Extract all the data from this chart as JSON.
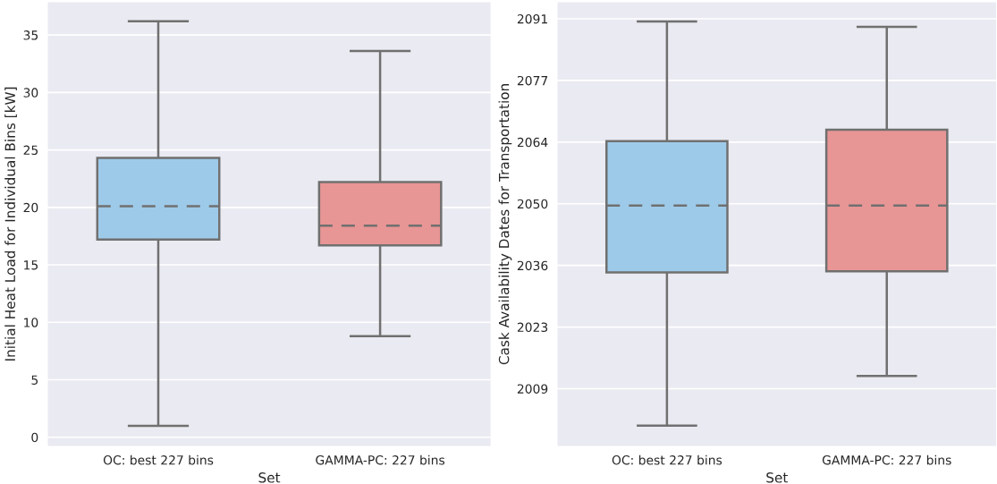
{
  "chart_data": [
    {
      "type": "box",
      "xlabel": "Set",
      "ylabel": "Initial Heat Load for Individual Bins [kW]",
      "categories": [
        "OC: best 227 bins",
        "GAMMA-PC: 227 bins"
      ],
      "colors": [
        "#9ecae9",
        "#e89595"
      ],
      "boxes": [
        {
          "low": 1.0,
          "q1": 17.2,
          "median": 20.1,
          "q3": 24.3,
          "high": 36.2
        },
        {
          "low": 8.8,
          "q1": 16.7,
          "median": 18.4,
          "q3": 22.2,
          "high": 33.6
        }
      ],
      "ylim": [
        -0.8,
        37.9
      ],
      "yticks": [
        0,
        5,
        10,
        15,
        20,
        25,
        30,
        35
      ],
      "grid": "y"
    },
    {
      "type": "box",
      "xlabel": "Set",
      "ylabel": "Cask Availability Dates for Transportation",
      "categories": [
        "OC: best 227 bins",
        "GAMMA-PC: 227 bins"
      ],
      "colors": [
        "#9ecae9",
        "#e89595"
      ],
      "boxes": [
        {
          "low": 2000.8,
          "q1": 2034.8,
          "median": 2049.6,
          "q3": 2063.9,
          "high": 2090.4
        },
        {
          "low": 2011.8,
          "q1": 2035.0,
          "median": 2049.6,
          "q3": 2066.4,
          "high": 2089.2
        }
      ],
      "ylim": [
        1996.2,
        2094.8
      ],
      "yticks": [
        {
          "value": 2009.0,
          "label": "2009"
        },
        {
          "value": 2022.67,
          "label": "2023"
        },
        {
          "value": 2036.33,
          "label": "2036"
        },
        {
          "value": 2050.0,
          "label": "2050"
        },
        {
          "value": 2063.67,
          "label": "2064"
        },
        {
          "value": 2077.33,
          "label": "2077"
        },
        {
          "value": 2091.0,
          "label": "2091"
        }
      ],
      "grid": "y"
    }
  ]
}
